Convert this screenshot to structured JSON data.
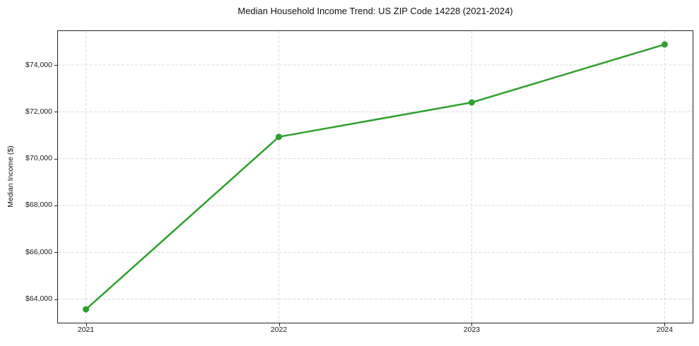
{
  "chart_data": {
    "type": "line",
    "title": "Median Household Income Trend: US ZIP Code 14228 (2021-2024)",
    "xlabel": "",
    "ylabel": "Median Income ($)",
    "x": [
      2021,
      2022,
      2023,
      2024
    ],
    "x_tick_labels": [
      "2021",
      "2022",
      "2023",
      "2024"
    ],
    "series": [
      {
        "name": "Median household income",
        "values": [
          63560,
          70930,
          72400,
          74880
        ]
      }
    ],
    "y_ticks": [
      64000,
      66000,
      68000,
      70000,
      72000,
      74000
    ],
    "y_tick_labels": [
      "$64,000",
      "$66,000",
      "$68,000",
      "$70,000",
      "$72,000",
      "$74,000"
    ],
    "xlim": [
      2020.855,
      2024.145
    ],
    "ylim": [
      62990,
      75450
    ],
    "grid": true,
    "grid_style": "dashed",
    "legend": false,
    "marker": "circle",
    "colors": {
      "line": "#2ca02c",
      "marker": "#2ca02c",
      "grid": "#d9d9d9",
      "spine": "#242424",
      "text": "#1a1a1a",
      "background": "#ffffff"
    }
  }
}
